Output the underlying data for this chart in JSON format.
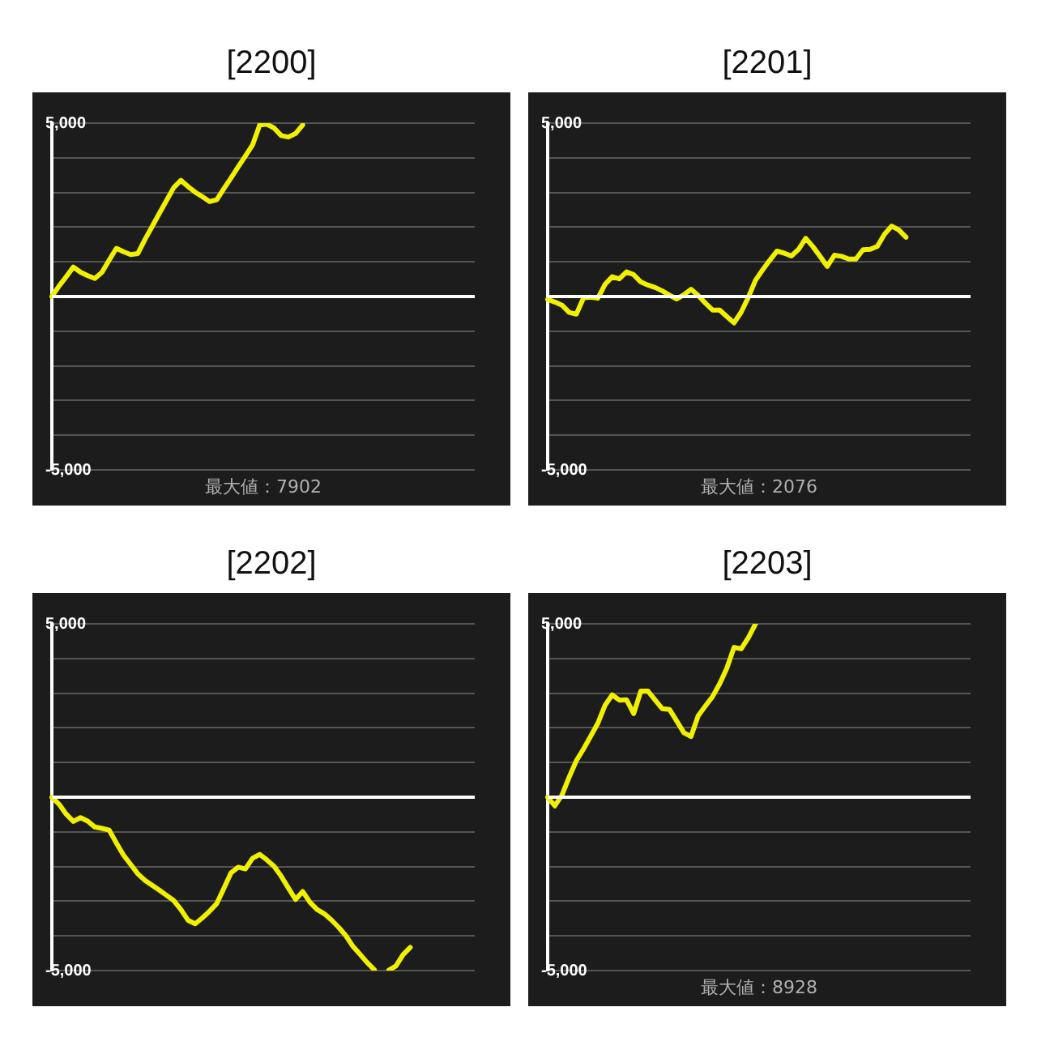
{
  "chart_data": [
    {
      "type": "line",
      "title": "[2200]",
      "categories": [
        null,
        null,
        null,
        null,
        null,
        null,
        null,
        null,
        null,
        null,
        null,
        null,
        null,
        null,
        null,
        null,
        null,
        null,
        null,
        null,
        null,
        null,
        null,
        null,
        null,
        null,
        null,
        null,
        null,
        null,
        null,
        null,
        null,
        null,
        null,
        null,
        null,
        null,
        null,
        null,
        null,
        null,
        null,
        null,
        null,
        null,
        null,
        null,
        null,
        null,
        null,
        null,
        null,
        null,
        null,
        null,
        null,
        null,
        null,
        null
      ],
      "series": [
        {
          "color": "#f0f000",
          "values": [
            0,
            300,
            570,
            850,
            700,
            600,
            520,
            700,
            1050,
            1390,
            1290,
            1210,
            1240,
            1650,
            2020,
            2400,
            2770,
            3140,
            3350,
            3170,
            3010,
            2880,
            2740,
            2790,
            3110,
            3420,
            3740,
            4050,
            4370,
            4950,
            4970,
            4860,
            4640,
            4600,
            4700,
            4950,
            null,
            null,
            null,
            null,
            null,
            null,
            null,
            null,
            null,
            null,
            null,
            null,
            null,
            null,
            null,
            null,
            null,
            null,
            null,
            null,
            null,
            null,
            null,
            null
          ]
        }
      ],
      "ylim": [
        -5000,
        5000
      ],
      "yticks": [
        {
          "value": -5000,
          "label": "-5,000"
        },
        {
          "value": -4000,
          "label": null
        },
        {
          "value": -3000,
          "label": null
        },
        {
          "value": -2000,
          "label": null
        },
        {
          "value": -1000,
          "label": null
        },
        {
          "value": 0,
          "label": null
        },
        {
          "value": 1000,
          "label": null
        },
        {
          "value": 2000,
          "label": null
        },
        {
          "value": 3000,
          "label": null
        },
        {
          "value": 4000,
          "label": null
        },
        {
          "value": 5000,
          "label": "5,000"
        }
      ],
      "ref_lines": [
        {
          "axis": "y",
          "value": 0,
          "color": "#ffffff"
        }
      ],
      "grid": "y",
      "legend": false,
      "tick_labels": "y",
      "marker": "none",
      "line_style": "solid",
      "annotations": [
        "最大値：7902"
      ]
    },
    {
      "type": "line",
      "title": "[2201]",
      "categories": [
        null,
        null,
        null,
        null,
        null,
        null,
        null,
        null,
        null,
        null,
        null,
        null,
        null,
        null,
        null,
        null,
        null,
        null,
        null,
        null,
        null,
        null,
        null,
        null,
        null,
        null,
        null,
        null,
        null,
        null,
        null,
        null,
        null,
        null,
        null,
        null,
        null,
        null,
        null,
        null,
        null,
        null,
        null,
        null,
        null,
        null,
        null,
        null,
        null,
        null,
        null,
        null,
        null,
        null,
        null,
        null,
        null,
        null,
        null,
        null
      ],
      "series": [
        {
          "color": "#f0f000",
          "values": [
            -80,
            -160,
            -250,
            -460,
            -510,
            -40,
            -20,
            -50,
            350,
            570,
            510,
            710,
            630,
            420,
            330,
            260,
            160,
            40,
            -70,
            50,
            210,
            30,
            -190,
            -390,
            -390,
            -580,
            -760,
            -450,
            -20,
            470,
            770,
            1050,
            1310,
            1250,
            1170,
            1360,
            1680,
            1440,
            1160,
            870,
            1190,
            1160,
            1080,
            1080,
            1350,
            1360,
            1450,
            1800,
            2030,
            1920,
            1710,
            null,
            null,
            null,
            null,
            null,
            null,
            null,
            null,
            null
          ]
        }
      ],
      "ylim": [
        -5000,
        5000
      ],
      "yticks": [
        {
          "value": -5000,
          "label": "-5,000"
        },
        {
          "value": -4000,
          "label": null
        },
        {
          "value": -3000,
          "label": null
        },
        {
          "value": -2000,
          "label": null
        },
        {
          "value": -1000,
          "label": null
        },
        {
          "value": 0,
          "label": null
        },
        {
          "value": 1000,
          "label": null
        },
        {
          "value": 2000,
          "label": null
        },
        {
          "value": 3000,
          "label": null
        },
        {
          "value": 4000,
          "label": null
        },
        {
          "value": 5000,
          "label": "5,000"
        }
      ],
      "ref_lines": [
        {
          "axis": "y",
          "value": 0,
          "color": "#ffffff"
        }
      ],
      "grid": "y",
      "legend": false,
      "tick_labels": "y",
      "marker": "none",
      "line_style": "solid",
      "annotations": [
        "最大値：2076"
      ]
    },
    {
      "type": "line",
      "title": "[2202]",
      "categories": [
        null,
        null,
        null,
        null,
        null,
        null,
        null,
        null,
        null,
        null,
        null,
        null,
        null,
        null,
        null,
        null,
        null,
        null,
        null,
        null,
        null,
        null,
        null,
        null,
        null,
        null,
        null,
        null,
        null,
        null,
        null,
        null,
        null,
        null,
        null,
        null,
        null,
        null,
        null,
        null,
        null,
        null,
        null,
        null,
        null,
        null,
        null,
        null,
        null,
        null,
        null,
        null,
        null,
        null,
        null,
        null,
        null,
        null,
        null,
        null
      ],
      "series": [
        {
          "color": "#f0f000",
          "values": [
            0,
            -200,
            -490,
            -700,
            -590,
            -690,
            -860,
            -900,
            -950,
            -1320,
            -1670,
            -1940,
            -2210,
            -2400,
            -2540,
            -2680,
            -2830,
            -2980,
            -3240,
            -3550,
            -3650,
            -3480,
            -3290,
            -3070,
            -2630,
            -2180,
            -2020,
            -2070,
            -1760,
            -1650,
            -1810,
            -1990,
            -2280,
            -2620,
            -2950,
            -2720,
            -3030,
            -3240,
            -3360,
            -3540,
            -3750,
            -3990,
            -4300,
            -4530,
            -4770,
            -4980,
            null,
            -4990,
            -4870,
            -4540,
            -4330,
            null,
            null,
            null,
            null,
            null,
            null,
            null,
            null,
            null
          ]
        }
      ],
      "ylim": [
        -5000,
        5000
      ],
      "yticks": [
        {
          "value": -5000,
          "label": "-5,000"
        },
        {
          "value": -4000,
          "label": null
        },
        {
          "value": -3000,
          "label": null
        },
        {
          "value": -2000,
          "label": null
        },
        {
          "value": -1000,
          "label": null
        },
        {
          "value": 0,
          "label": null
        },
        {
          "value": 1000,
          "label": null
        },
        {
          "value": 2000,
          "label": null
        },
        {
          "value": 3000,
          "label": null
        },
        {
          "value": 4000,
          "label": null
        },
        {
          "value": 5000,
          "label": "5,000"
        }
      ],
      "ref_lines": [
        {
          "axis": "y",
          "value": 0,
          "color": "#ffffff"
        }
      ],
      "grid": "y",
      "legend": false,
      "tick_labels": "y",
      "marker": "none",
      "line_style": "solid"
    },
    {
      "type": "line",
      "title": "[2203]",
      "categories": [
        null,
        null,
        null,
        null,
        null,
        null,
        null,
        null,
        null,
        null,
        null,
        null,
        null,
        null,
        null,
        null,
        null,
        null,
        null,
        null,
        null,
        null,
        null,
        null,
        null,
        null,
        null,
        null,
        null,
        null,
        null,
        null,
        null,
        null,
        null,
        null,
        null,
        null,
        null,
        null,
        null,
        null,
        null,
        null,
        null,
        null,
        null,
        null,
        null,
        null,
        null,
        null,
        null,
        null,
        null,
        null,
        null,
        null,
        null,
        null
      ],
      "series": [
        {
          "color": "#f0f000",
          "values": [
            0,
            -250,
            60,
            580,
            1050,
            1390,
            1760,
            2130,
            2650,
            2950,
            2800,
            2810,
            2410,
            3060,
            3060,
            2800,
            2550,
            2530,
            2200,
            1860,
            1750,
            2350,
            2630,
            2900,
            3270,
            3720,
            4320,
            4280,
            4600,
            5000,
            null,
            null,
            null,
            null,
            null,
            null,
            null,
            null,
            null,
            null,
            null,
            null,
            null,
            null,
            null,
            null,
            null,
            null,
            null,
            null,
            null,
            null,
            null,
            null,
            null,
            null,
            null,
            null,
            null,
            null
          ]
        }
      ],
      "ylim": [
        -5000,
        5000
      ],
      "yticks": [
        {
          "value": -5000,
          "label": "-5,000"
        },
        {
          "value": -4000,
          "label": null
        },
        {
          "value": -3000,
          "label": null
        },
        {
          "value": -2000,
          "label": null
        },
        {
          "value": -1000,
          "label": null
        },
        {
          "value": 0,
          "label": null
        },
        {
          "value": 1000,
          "label": null
        },
        {
          "value": 2000,
          "label": null
        },
        {
          "value": 3000,
          "label": null
        },
        {
          "value": 4000,
          "label": null
        },
        {
          "value": 5000,
          "label": "5,000"
        }
      ],
      "ref_lines": [
        {
          "axis": "y",
          "value": 0,
          "color": "#ffffff"
        }
      ],
      "grid": "y",
      "legend": false,
      "tick_labels": "y",
      "marker": "none",
      "line_style": "solid",
      "annotations": [
        "最大値：8928"
      ]
    }
  ]
}
